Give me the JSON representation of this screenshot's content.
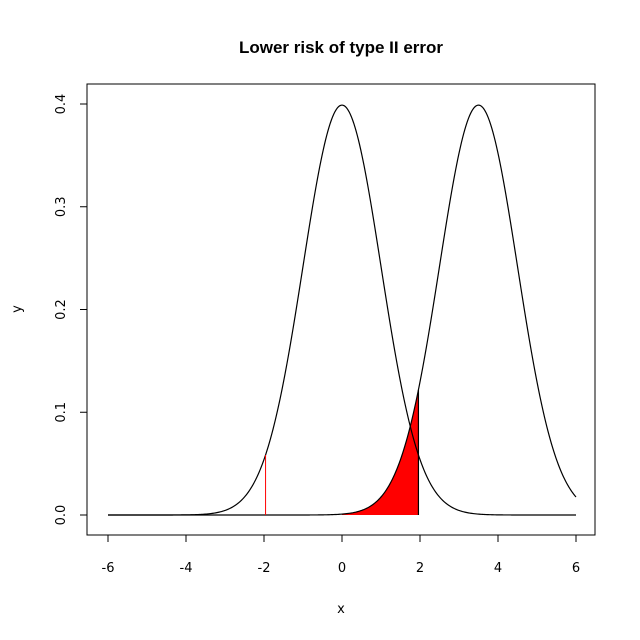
{
  "chart_data": {
    "type": "line",
    "title": "Lower risk of type II error",
    "xlabel": "x",
    "ylabel": "y",
    "xlim": [
      -6,
      6
    ],
    "ylim": [
      0,
      0.4
    ],
    "x_ticks": [
      -6,
      -4,
      -2,
      0,
      2,
      4,
      6
    ],
    "x_tick_labels": [
      "-6",
      "-4",
      "-2",
      "0",
      "2",
      "4",
      "6"
    ],
    "y_ticks": [
      0.0,
      0.1,
      0.2,
      0.3,
      0.4
    ],
    "y_tick_labels": [
      "0.0",
      "0.1",
      "0.2",
      "0.3",
      "0.4"
    ],
    "grid": false,
    "series": [
      {
        "distribution": "normal",
        "mean": 0,
        "sd": 1,
        "x_range": [
          -6,
          6
        ],
        "color": "#000000"
      },
      {
        "distribution": "normal",
        "mean": 3.5,
        "sd": 1,
        "x_range": [
          -6,
          6
        ],
        "color": "#000000"
      }
    ],
    "shaded_region": {
      "under_series": 1,
      "x_from": 0,
      "x_to": 1.96,
      "color": "#ff0000"
    },
    "vertical_lines": [
      {
        "x": -1.96,
        "under_series": 0,
        "color": "#ff0000"
      }
    ]
  }
}
